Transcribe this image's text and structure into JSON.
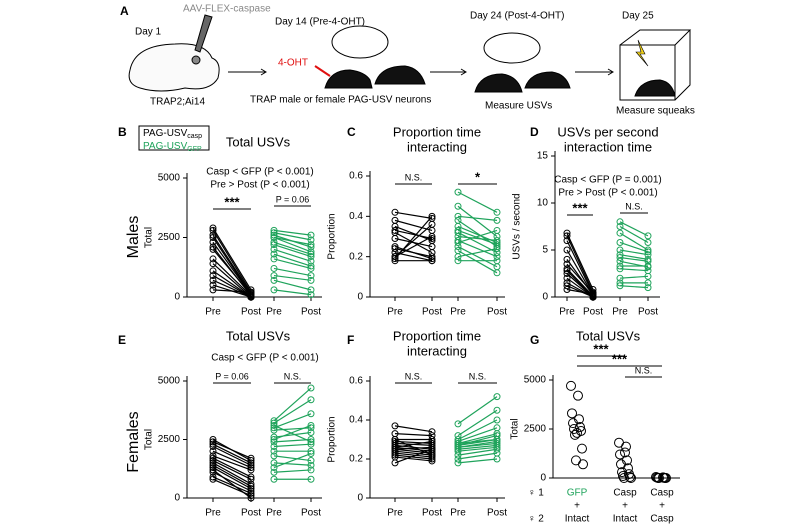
{
  "diagram": {
    "panel": "A",
    "day1": "Day 1",
    "virus": "AAV-FLEX-caspase",
    "mouse_line": "TRAP2;Ai14",
    "day14": "Day 14 (Pre-4-OHT)",
    "drug": "4-OHT",
    "trap": "TRAP male or female PAG-USV neurons",
    "day24": "Day 24 (Post-4-OHT)",
    "measure_usvs": "Measure USVs",
    "day25": "Day 25",
    "measure_squeaks": "Measure squeaks"
  },
  "row_labels": [
    "Males",
    "Females"
  ],
  "chart_data": [
    {
      "type": "paired",
      "panel": "B",
      "title": [
        "Total USVs"
      ],
      "ylabel": "Total",
      "ylim": [
        0,
        5000
      ],
      "yticks": [
        0,
        2500,
        5000
      ],
      "categories": [
        "Pre",
        "Post",
        "Pre",
        "Post"
      ],
      "legend": true,
      "stats": [
        "Casp < GFP (P < 0.001)",
        "Pre > Post (P < 0.001)"
      ],
      "brackets": [
        "***",
        "P = 0.06"
      ],
      "series": [
        {
          "name": "PAG-USV",
          "subscript": "casp",
          "color": "#000000",
          "pre": [
            2900,
            2800,
            2600,
            2500,
            2300,
            2100,
            1600,
            1400,
            1100,
            900,
            700,
            500,
            300,
            2000
          ],
          "post": [
            300,
            200,
            150,
            100,
            100,
            50,
            50,
            0,
            0,
            0,
            0,
            0,
            200,
            100
          ]
        },
        {
          "name": "PAG-USV",
          "subscript": "GFP",
          "color": "#1fa35b",
          "pre": [
            2800,
            2700,
            2600,
            2500,
            2300,
            2200,
            2000,
            1800,
            1600,
            1200,
            900,
            700,
            300,
            2500
          ],
          "post": [
            2600,
            2400,
            2100,
            1900,
            1800,
            1700,
            1500,
            1300,
            1200,
            900,
            700,
            300,
            100,
            2200
          ]
        }
      ]
    },
    {
      "type": "paired",
      "panel": "C",
      "title": [
        "Proportion time",
        "interacting"
      ],
      "ylabel": "Proportion",
      "ylim": [
        0,
        0.6
      ],
      "yticks": [
        0,
        0.2,
        0.4,
        0.6
      ],
      "categories": [
        "Pre",
        "Post",
        "Pre",
        "Post"
      ],
      "brackets": [
        "N.S.",
        "*"
      ],
      "series": [
        {
          "color": "#000000",
          "pre": [
            0.42,
            0.38,
            0.33,
            0.32,
            0.29,
            0.25,
            0.22,
            0.2,
            0.19,
            0.18,
            0.2,
            0.24,
            0.35
          ],
          "post": [
            0.39,
            0.33,
            0.29,
            0.22,
            0.25,
            0.19,
            0.18,
            0.3,
            0.4,
            0.18,
            0.36,
            0.2,
            0.28
          ]
        },
        {
          "color": "#1fa35b",
          "pre": [
            0.52,
            0.45,
            0.38,
            0.35,
            0.32,
            0.3,
            0.28,
            0.27,
            0.25,
            0.23,
            0.2,
            0.18,
            0.4,
            0.33
          ],
          "post": [
            0.42,
            0.3,
            0.25,
            0.27,
            0.22,
            0.28,
            0.2,
            0.33,
            0.15,
            0.12,
            0.24,
            0.18,
            0.38,
            0.26
          ]
        }
      ]
    },
    {
      "type": "paired",
      "panel": "D",
      "title": [
        "USVs per second",
        "interaction time"
      ],
      "ylabel": "USVs / second",
      "ylim": [
        0,
        15
      ],
      "yticks": [
        0,
        5,
        10,
        15
      ],
      "categories": [
        "Pre",
        "Post",
        "Pre",
        "Post"
      ],
      "stats": [
        "Casp < GFP (P = 0.001)",
        "Pre > Post (P < 0.001)"
      ],
      "brackets": [
        "***",
        "N.S."
      ],
      "series": [
        {
          "color": "#000000",
          "pre": [
            6.8,
            6.5,
            6,
            5,
            4,
            3,
            2.8,
            2.5,
            2,
            1.5,
            1.2,
            0.8,
            3.5
          ],
          "post": [
            0.8,
            0.5,
            0.3,
            0.2,
            0.2,
            0.1,
            0,
            0,
            0,
            0,
            0,
            0.3,
            0.4
          ]
        },
        {
          "color": "#1fa35b",
          "pre": [
            8,
            7.5,
            6.8,
            5,
            4.5,
            4.2,
            3.8,
            3,
            2,
            1.5,
            1.2,
            5.8,
            3.3
          ],
          "post": [
            6.5,
            5.8,
            5,
            4.5,
            4,
            3.8,
            3.2,
            2.8,
            2.2,
            1.5,
            1,
            4.8,
            3.3
          ]
        }
      ]
    },
    {
      "type": "paired",
      "panel": "E",
      "title": [
        "Total USVs"
      ],
      "ylabel": "Total",
      "ylim": [
        0,
        5000
      ],
      "yticks": [
        0,
        2500,
        5000
      ],
      "categories": [
        "Pre",
        "Post",
        "Pre",
        "Post"
      ],
      "stats": [
        "Casp < GFP (P < 0.001)"
      ],
      "brackets": [
        "P = 0.06",
        "N.S."
      ],
      "series": [
        {
          "color": "#000000",
          "pre": [
            2500,
            2300,
            2200,
            2000,
            1800,
            1700,
            1600,
            1500,
            1400,
            1300,
            1100,
            900,
            800,
            2400,
            1200
          ],
          "post": [
            1600,
            1500,
            1400,
            1300,
            1200,
            900,
            800,
            600,
            500,
            400,
            300,
            200,
            100,
            1700,
            0
          ]
        },
        {
          "color": "#1fa35b",
          "pre": [
            3300,
            3200,
            3000,
            2900,
            2600,
            2400,
            2200,
            2000,
            1800,
            1500,
            1100,
            800,
            3100,
            2500,
            1300
          ],
          "post": [
            4700,
            4200,
            3600,
            3000,
            2800,
            2500,
            2300,
            2000,
            1600,
            1400,
            1200,
            800,
            2400,
            3100,
            1900
          ]
        }
      ]
    },
    {
      "type": "paired",
      "panel": "F",
      "title": [
        "Proportion time",
        "interacting"
      ],
      "ylabel": "Proportion",
      "ylim": [
        0,
        0.6
      ],
      "yticks": [
        0,
        0.2,
        0.4,
        0.6
      ],
      "categories": [
        "Pre",
        "Post",
        "Pre",
        "Post"
      ],
      "brackets": [
        "N.S.",
        "N.S."
      ],
      "series": [
        {
          "color": "#000000",
          "pre": [
            0.37,
            0.33,
            0.3,
            0.29,
            0.28,
            0.27,
            0.26,
            0.25,
            0.24,
            0.23,
            0.22,
            0.21,
            0.18,
            0.26,
            0.3,
            0.25
          ],
          "post": [
            0.34,
            0.32,
            0.3,
            0.28,
            0.27,
            0.25,
            0.24,
            0.23,
            0.22,
            0.21,
            0.2,
            0.19,
            0.25,
            0.29,
            0.22,
            0.26
          ]
        },
        {
          "color": "#1fa35b",
          "pre": [
            0.38,
            0.32,
            0.3,
            0.29,
            0.28,
            0.27,
            0.26,
            0.26,
            0.25,
            0.24,
            0.22,
            0.2,
            0.18,
            0.28,
            0.27
          ],
          "post": [
            0.52,
            0.45,
            0.4,
            0.36,
            0.33,
            0.3,
            0.29,
            0.28,
            0.27,
            0.26,
            0.25,
            0.23,
            0.2,
            0.3,
            0.32
          ]
        }
      ]
    },
    {
      "type": "dot",
      "panel": "G",
      "title": [
        "Total USVs"
      ],
      "ylabel": "Total",
      "ylim": [
        0,
        5000
      ],
      "yticks": [
        0,
        2500,
        5000
      ],
      "categories": [
        [
          "GFP",
          "+",
          "Intact"
        ],
        [
          "Casp",
          "+",
          "Intact"
        ],
        [
          "Casp",
          "+",
          "Casp"
        ]
      ],
      "category_colors": [
        "#1fa35b",
        "#000000",
        "#000000"
      ],
      "row_labels": [
        "♀ 1",
        "♀ 2"
      ],
      "brackets": [
        "***",
        "***",
        "N.S."
      ],
      "color": "#000000",
      "values": [
        [
          4700,
          4200,
          3300,
          3000,
          2800,
          2600,
          2500,
          2400,
          2200,
          1500,
          900,
          700,
          2300
        ],
        [
          1800,
          1600,
          1200,
          900,
          700,
          500,
          300,
          200,
          100,
          50,
          0,
          0,
          1300
        ],
        [
          50,
          30,
          20,
          10,
          0,
          0,
          0,
          0
        ]
      ]
    }
  ]
}
